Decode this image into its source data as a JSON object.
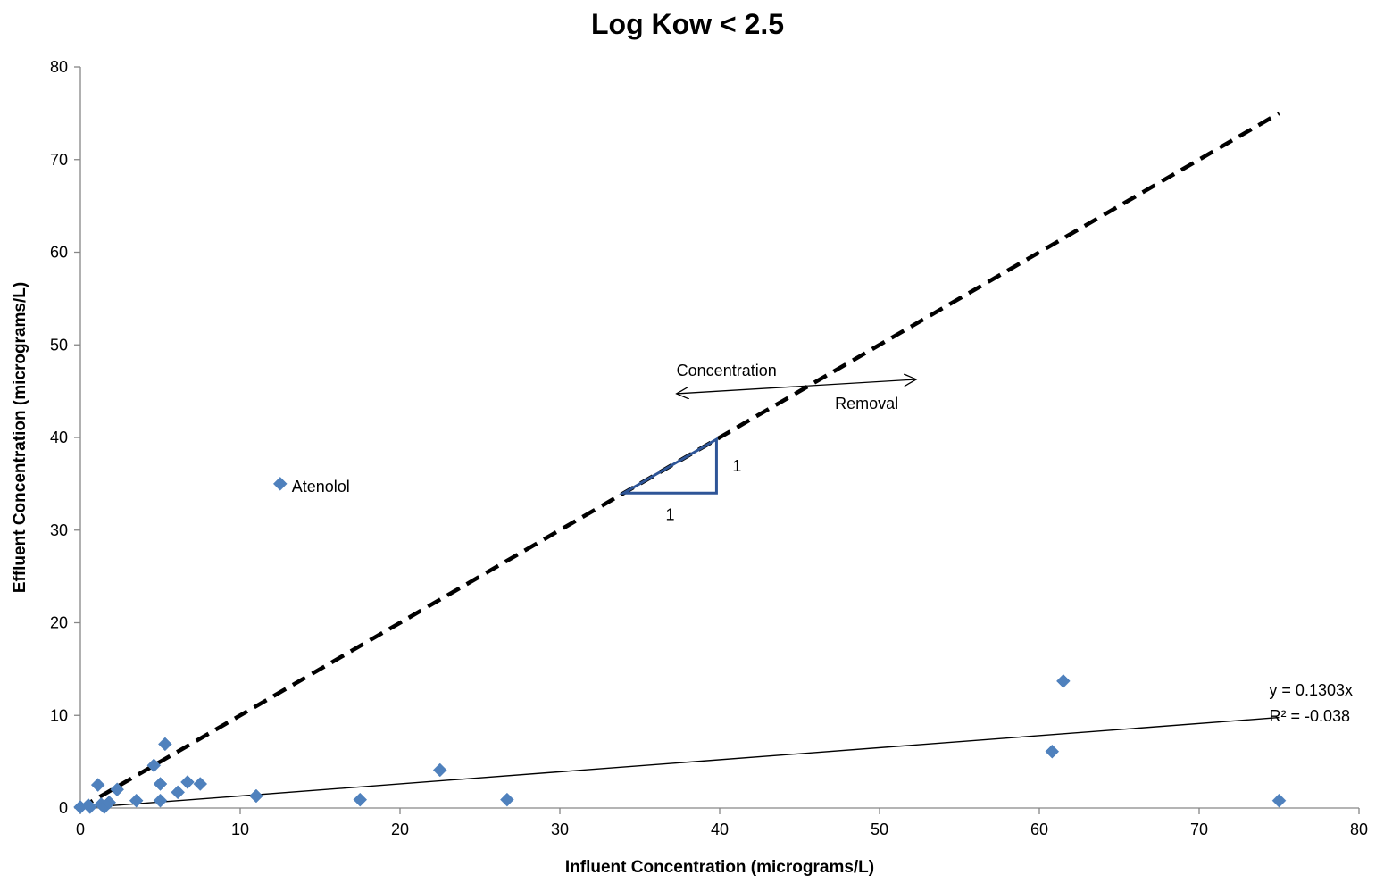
{
  "chart_data": {
    "type": "scatter",
    "title": "Log Kow < 2.5",
    "xlabel": "Influent Concentration (micrograms/L)",
    "ylabel": "Effluent Concentration (micrograms/L)",
    "xlim": [
      0,
      80
    ],
    "ylim": [
      0,
      80
    ],
    "x_ticks": [
      "0",
      "10",
      "20",
      "30",
      "40",
      "50",
      "60",
      "70",
      "80"
    ],
    "y_ticks": [
      "0",
      "10",
      "20",
      "30",
      "40",
      "50",
      "60",
      "70",
      "80"
    ],
    "grid": false,
    "legend": "none",
    "marker_color": "#4F81BD",
    "triangle_color": "#2E5597",
    "series": [
      {
        "marker": "diamond",
        "points": [
          [
            0,
            0.1
          ],
          [
            0.5,
            0.3
          ],
          [
            0.6,
            0.1
          ],
          [
            1.1,
            2.5
          ],
          [
            1.3,
            0.4
          ],
          [
            1.5,
            0.1
          ],
          [
            1.8,
            0.6
          ],
          [
            2.3,
            2.0
          ],
          [
            3.5,
            0.8
          ],
          [
            4.6,
            4.6
          ],
          [
            5.0,
            2.6
          ],
          [
            5.0,
            0.8
          ],
          [
            5.3,
            6.9
          ],
          [
            6.1,
            1.7
          ],
          [
            6.7,
            2.8
          ],
          [
            7.5,
            2.6
          ],
          [
            11.0,
            1.3
          ],
          [
            12.5,
            35.0
          ],
          [
            17.5,
            0.9
          ],
          [
            22.5,
            4.1
          ],
          [
            26.7,
            0.9
          ],
          [
            60.8,
            6.1
          ],
          [
            61.5,
            13.7
          ],
          [
            75.0,
            0.8
          ]
        ]
      }
    ],
    "reference_line": {
      "style": "dashed",
      "slope": 1,
      "x_range": [
        0,
        75
      ]
    },
    "trendline": {
      "slope": 0.1303,
      "x_range": [
        0,
        75
      ]
    },
    "trendline_label": {
      "equation": "y = 0.1303x",
      "r2": "R² = -0.038"
    },
    "point_label": {
      "text": "Atenolol",
      "x": 12.5,
      "y": 35.0
    },
    "slope_triangle": {
      "x0": 34,
      "x1": 39.8,
      "run_label": "1",
      "rise_label": "1"
    },
    "arrow_annotation": {
      "top_label": "Concentration",
      "bottom_label": "Removal",
      "x0": 37.3,
      "x1": 52.3,
      "y": 45.5
    }
  }
}
